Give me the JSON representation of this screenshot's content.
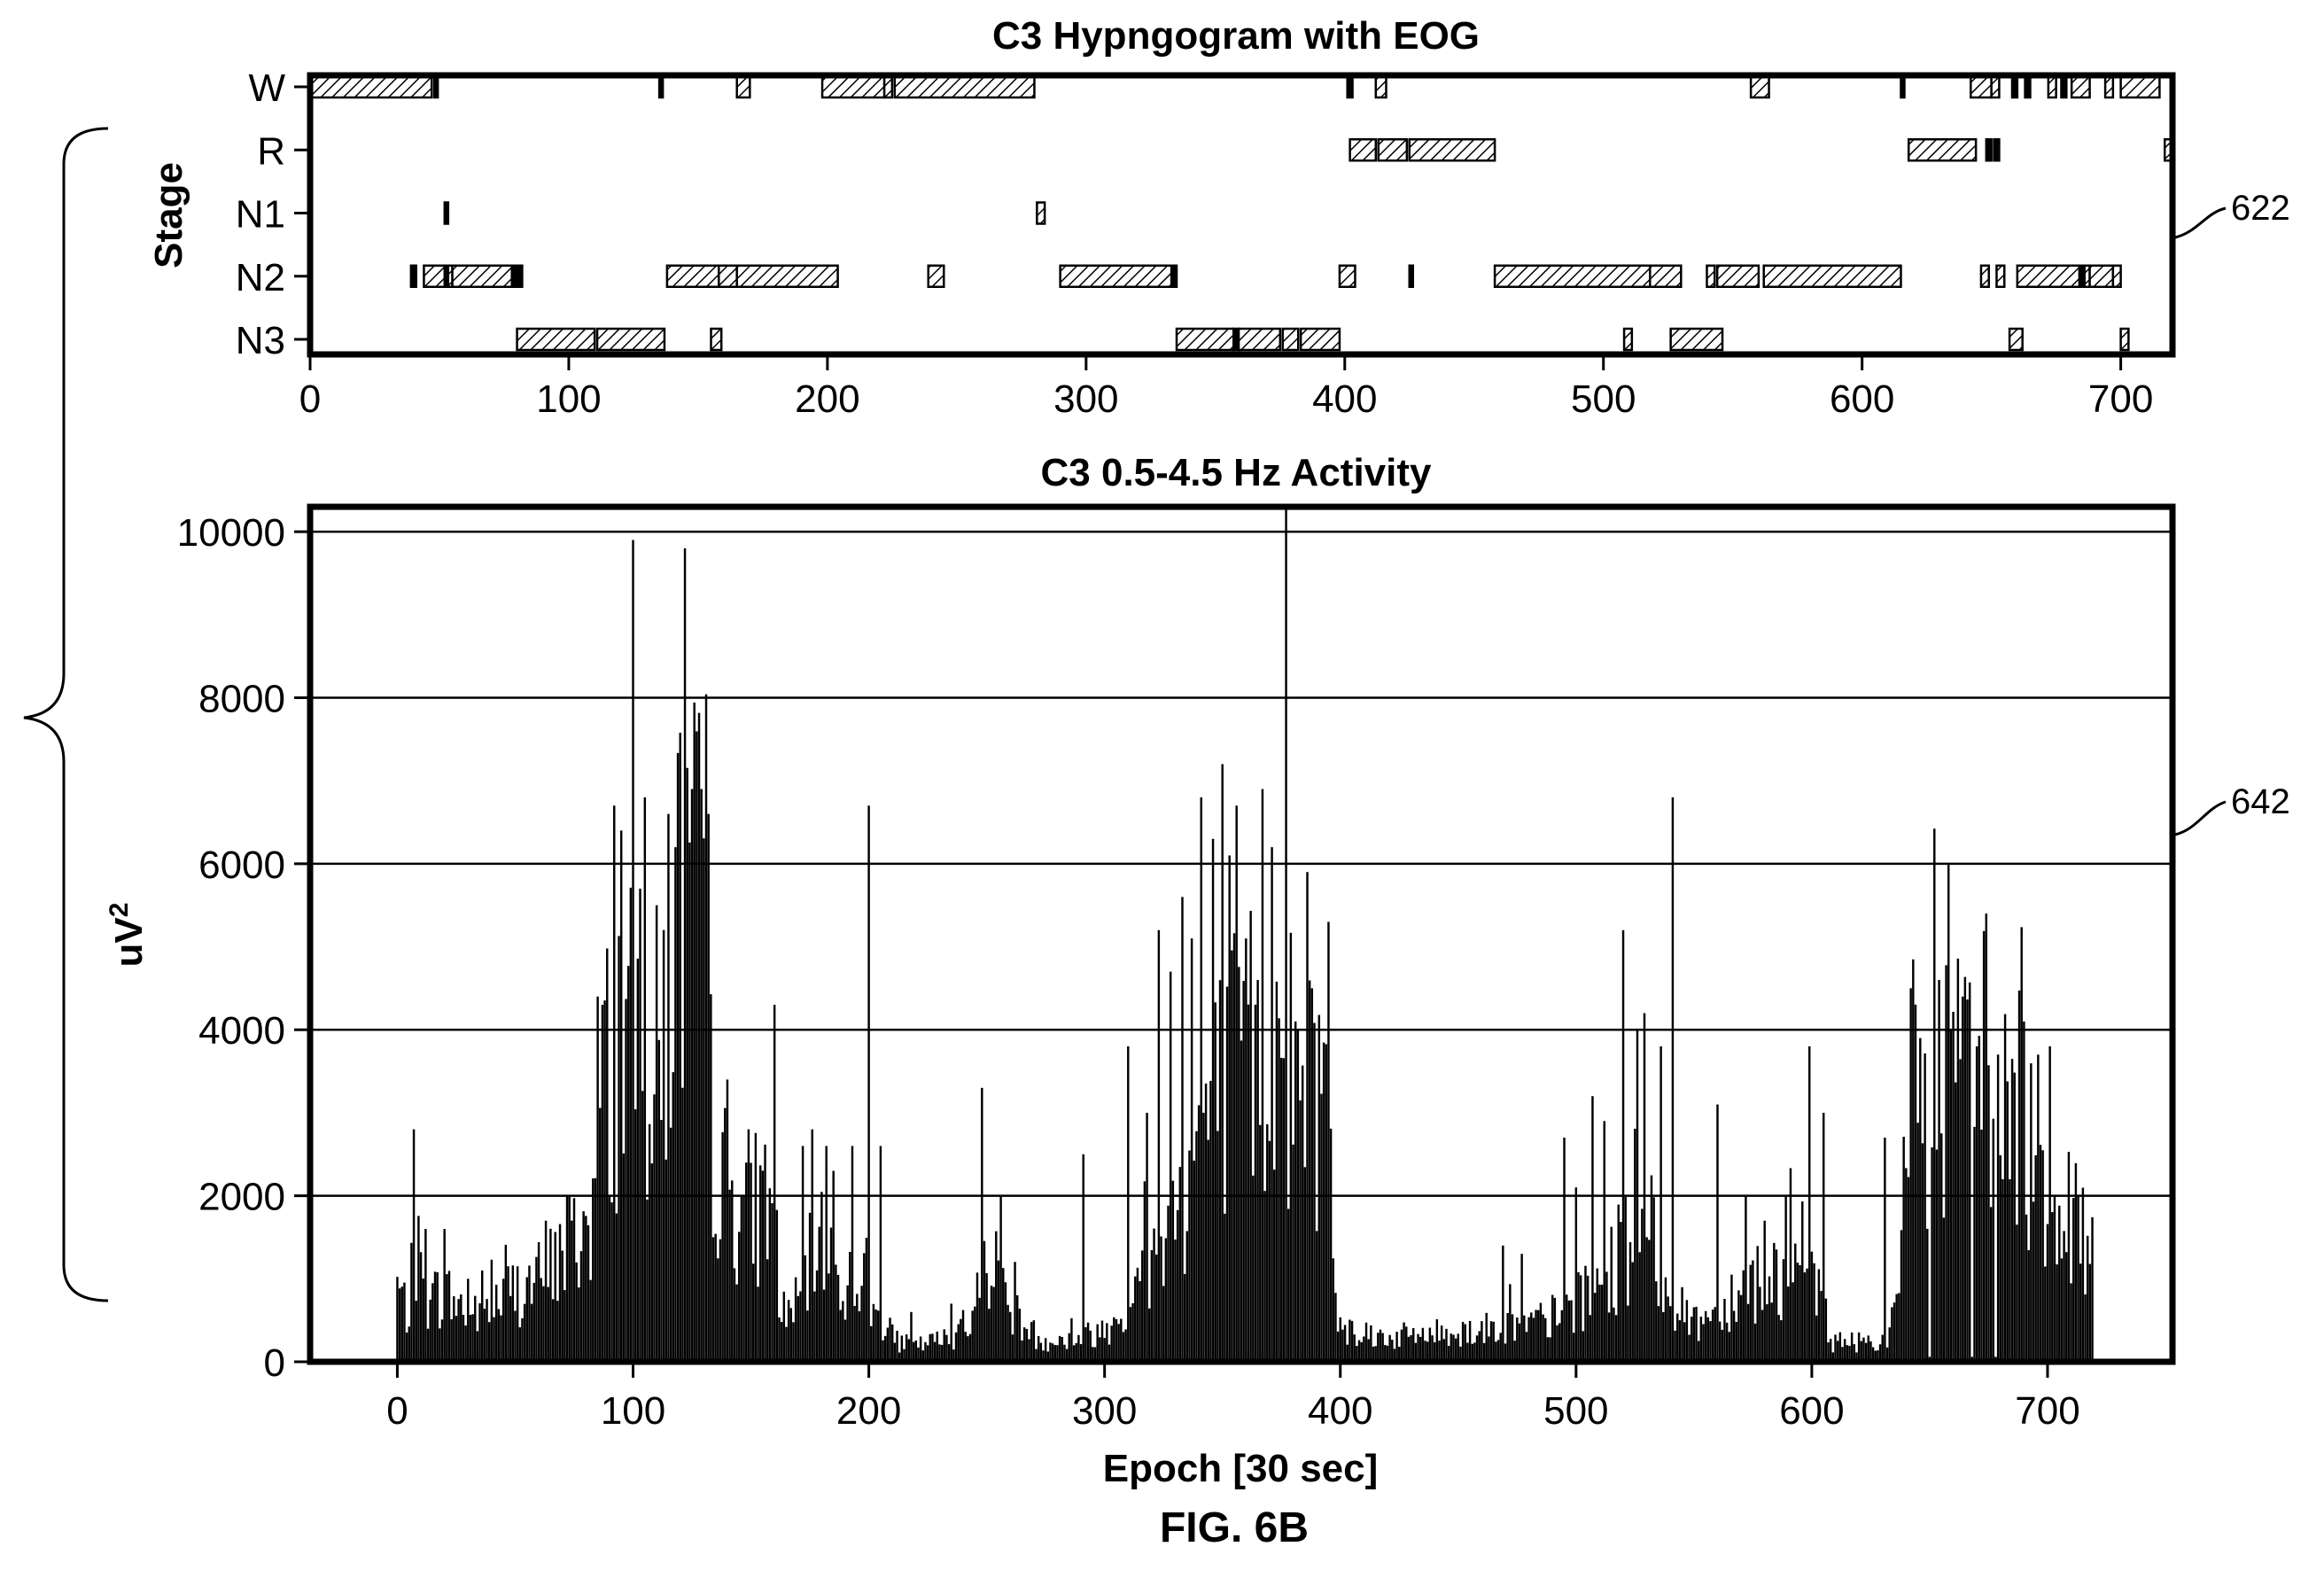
{
  "figure_label": "FIG. 6B",
  "reference_numerals": {
    "hypnogram": "622",
    "activity": "642"
  },
  "chart_data": [
    {
      "type": "bar",
      "chart_role": "hypnogram",
      "title": "C3 Hypngogram with EOG",
      "ylabel": "Stage",
      "xlabel": "",
      "stages": [
        "W",
        "R",
        "N1",
        "N2",
        "N3"
      ],
      "x_ticks": [
        0,
        100,
        200,
        300,
        400,
        500,
        600,
        700
      ],
      "xlim": [
        0,
        720
      ],
      "grid": false,
      "segments": [
        {
          "stage": "W",
          "start": 0,
          "end": 47
        },
        {
          "stage": "W",
          "start": 48,
          "end": 49
        },
        {
          "stage": "W",
          "start": 135,
          "end": 136
        },
        {
          "stage": "W",
          "start": 165,
          "end": 170
        },
        {
          "stage": "W",
          "start": 198,
          "end": 222
        },
        {
          "stage": "W",
          "start": 222,
          "end": 225
        },
        {
          "stage": "W",
          "start": 226,
          "end": 280
        },
        {
          "stage": "W",
          "start": 401,
          "end": 403
        },
        {
          "stage": "W",
          "start": 412,
          "end": 416
        },
        {
          "stage": "W",
          "start": 557,
          "end": 564
        },
        {
          "stage": "W",
          "start": 615,
          "end": 616
        },
        {
          "stage": "W",
          "start": 642,
          "end": 650
        },
        {
          "stage": "W",
          "start": 650,
          "end": 653
        },
        {
          "stage": "W",
          "start": 658,
          "end": 660
        },
        {
          "stage": "W",
          "start": 663,
          "end": 665
        },
        {
          "stage": "W",
          "start": 672,
          "end": 675
        },
        {
          "stage": "W",
          "start": 677,
          "end": 679
        },
        {
          "stage": "W",
          "start": 681,
          "end": 688
        },
        {
          "stage": "W",
          "start": 694,
          "end": 697
        },
        {
          "stage": "W",
          "start": 700,
          "end": 715
        },
        {
          "stage": "R",
          "start": 402,
          "end": 412
        },
        {
          "stage": "R",
          "start": 413,
          "end": 424
        },
        {
          "stage": "R",
          "start": 425,
          "end": 458
        },
        {
          "stage": "R",
          "start": 618,
          "end": 644
        },
        {
          "stage": "R",
          "start": 648,
          "end": 650
        },
        {
          "stage": "R",
          "start": 651,
          "end": 653
        },
        {
          "stage": "R",
          "start": 717,
          "end": 720
        },
        {
          "stage": "N1",
          "start": 52,
          "end": 53
        },
        {
          "stage": "N1",
          "start": 281,
          "end": 284
        },
        {
          "stage": "N2",
          "start": 39,
          "end": 41
        },
        {
          "stage": "N2",
          "start": 44,
          "end": 55
        },
        {
          "stage": "N2",
          "start": 52,
          "end": 53
        },
        {
          "stage": "N2",
          "start": 55,
          "end": 80
        },
        {
          "stage": "N2",
          "start": 78,
          "end": 80
        },
        {
          "stage": "N2",
          "start": 80,
          "end": 82
        },
        {
          "stage": "N2",
          "start": 138,
          "end": 158
        },
        {
          "stage": "N2",
          "start": 158,
          "end": 165
        },
        {
          "stage": "N2",
          "start": 165,
          "end": 204
        },
        {
          "stage": "N2",
          "start": 239,
          "end": 245
        },
        {
          "stage": "N2",
          "start": 290,
          "end": 333
        },
        {
          "stage": "N2",
          "start": 333,
          "end": 335
        },
        {
          "stage": "N2",
          "start": 398,
          "end": 404
        },
        {
          "stage": "N2",
          "start": 425,
          "end": 426
        },
        {
          "stage": "N2",
          "start": 458,
          "end": 518
        },
        {
          "stage": "N2",
          "start": 518,
          "end": 530
        },
        {
          "stage": "N2",
          "start": 540,
          "end": 543
        },
        {
          "stage": "N2",
          "start": 544,
          "end": 560
        },
        {
          "stage": "N2",
          "start": 562,
          "end": 615
        },
        {
          "stage": "N2",
          "start": 646,
          "end": 649
        },
        {
          "stage": "N2",
          "start": 652,
          "end": 655
        },
        {
          "stage": "N2",
          "start": 660,
          "end": 688
        },
        {
          "stage": "N2",
          "start": 684,
          "end": 686
        },
        {
          "stage": "N2",
          "start": 688,
          "end": 697
        },
        {
          "stage": "N2",
          "start": 697,
          "end": 700
        },
        {
          "stage": "N3",
          "start": 80,
          "end": 110
        },
        {
          "stage": "N3",
          "start": 111,
          "end": 137
        },
        {
          "stage": "N3",
          "start": 155,
          "end": 159
        },
        {
          "stage": "N3",
          "start": 335,
          "end": 357
        },
        {
          "stage": "N3",
          "start": 357,
          "end": 359
        },
        {
          "stage": "N3",
          "start": 359,
          "end": 375
        },
        {
          "stage": "N3",
          "start": 376,
          "end": 382
        },
        {
          "stage": "N3",
          "start": 383,
          "end": 398
        },
        {
          "stage": "N3",
          "start": 508,
          "end": 511
        },
        {
          "stage": "N3",
          "start": 526,
          "end": 546
        },
        {
          "stage": "N3",
          "start": 657,
          "end": 662
        },
        {
          "stage": "N3",
          "start": 700,
          "end": 703
        }
      ]
    },
    {
      "type": "bar",
      "chart_role": "activity",
      "title": "C3 0.5-4.5 Hz Activity",
      "xlabel": "Epoch [30 sec]",
      "ylabel": "uV",
      "ylabel_superscript": "2",
      "x_ticks": [
        0,
        100,
        200,
        300,
        400,
        500,
        600,
        700
      ],
      "y_ticks": [
        0,
        2000,
        4000,
        6000,
        8000,
        10000
      ],
      "xlim": [
        -37,
        753
      ],
      "ylim": [
        0,
        10300
      ],
      "grid": true,
      "anchors": [
        [
          0,
          950
        ],
        [
          3,
          700
        ],
        [
          6,
          600
        ],
        [
          8,
          1400
        ],
        [
          12,
          750
        ],
        [
          20,
          850
        ],
        [
          30,
          600
        ],
        [
          40,
          700
        ],
        [
          50,
          900
        ],
        [
          60,
          1000
        ],
        [
          70,
          1300
        ],
        [
          80,
          1700
        ],
        [
          86,
          2200
        ],
        [
          88,
          3500
        ],
        [
          95,
          4000
        ],
        [
          100,
          4300
        ],
        [
          106,
          3800
        ],
        [
          110,
          3300
        ],
        [
          115,
          4800
        ],
        [
          120,
          5600
        ],
        [
          125,
          5700
        ],
        [
          130,
          5300
        ],
        [
          133,
          3300
        ],
        [
          137,
          2200
        ],
        [
          145,
          2000
        ],
        [
          155,
          1900
        ],
        [
          160,
          1700
        ],
        [
          163,
          600
        ],
        [
          170,
          700
        ],
        [
          178,
          1500
        ],
        [
          185,
          1200
        ],
        [
          190,
          900
        ],
        [
          196,
          1100
        ],
        [
          200,
          700
        ],
        [
          205,
          500
        ],
        [
          212,
          250
        ],
        [
          220,
          200
        ],
        [
          235,
          300
        ],
        [
          245,
          600
        ],
        [
          250,
          1400
        ],
        [
          256,
          1000
        ],
        [
          262,
          600
        ],
        [
          270,
          300
        ],
        [
          280,
          250
        ],
        [
          290,
          300
        ],
        [
          300,
          400
        ],
        [
          310,
          700
        ],
        [
          320,
          1200
        ],
        [
          330,
          1800
        ],
        [
          338,
          2800
        ],
        [
          345,
          3100
        ],
        [
          350,
          3300
        ],
        [
          356,
          3600
        ],
        [
          360,
          3800
        ],
        [
          368,
          3700
        ],
        [
          375,
          3800
        ],
        [
          382,
          3600
        ],
        [
          390,
          3300
        ],
        [
          395,
          3200
        ],
        [
          398,
          600
        ],
        [
          405,
          400
        ],
        [
          420,
          300
        ],
        [
          440,
          350
        ],
        [
          460,
          400
        ],
        [
          480,
          450
        ],
        [
          495,
          600
        ],
        [
          505,
          800
        ],
        [
          512,
          1000
        ],
        [
          518,
          1300
        ],
        [
          525,
          1500
        ],
        [
          532,
          1500
        ],
        [
          538,
          1100
        ],
        [
          545,
          600
        ],
        [
          552,
          500
        ],
        [
          560,
          700
        ],
        [
          570,
          900
        ],
        [
          580,
          1100
        ],
        [
          590,
          1000
        ],
        [
          600,
          900
        ],
        [
          605,
          900
        ],
        [
          608,
          250
        ],
        [
          620,
          250
        ],
        [
          633,
          300
        ],
        [
          637,
          700
        ],
        [
          640,
          3000
        ],
        [
          645,
          3600
        ],
        [
          650,
          3200
        ],
        [
          658,
          3400
        ],
        [
          665,
          3200
        ],
        [
          672,
          3700
        ],
        [
          680,
          3200
        ],
        [
          688,
          3000
        ],
        [
          695,
          2700
        ],
        [
          702,
          2100
        ],
        [
          708,
          1700
        ],
        [
          713,
          1600
        ],
        [
          719,
          1500
        ]
      ],
      "spikes": [
        [
          7,
          2800
        ],
        [
          12,
          1600
        ],
        [
          20,
          1600
        ],
        [
          30,
          1000
        ],
        [
          36,
          1100
        ],
        [
          45,
          1000
        ],
        [
          63,
          1700
        ],
        [
          72,
          2000
        ],
        [
          85,
          4400
        ],
        [
          87,
          4300
        ],
        [
          92,
          6700
        ],
        [
          95,
          6400
        ],
        [
          100,
          9900
        ],
        [
          103,
          5700
        ],
        [
          105,
          6800
        ],
        [
          110,
          5500
        ],
        [
          115,
          6600
        ],
        [
          118,
          6200
        ],
        [
          122,
          9800
        ],
        [
          125,
          6900
        ],
        [
          129,
          6900
        ],
        [
          132,
          6600
        ],
        [
          140,
          3400
        ],
        [
          148,
          2400
        ],
        [
          160,
          4300
        ],
        [
          172,
          2600
        ],
        [
          176,
          2800
        ],
        [
          182,
          2600
        ],
        [
          185,
          2300
        ],
        [
          193,
          2600
        ],
        [
          200,
          6700
        ],
        [
          205,
          2600
        ],
        [
          218,
          600
        ],
        [
          235,
          700
        ],
        [
          248,
          3300
        ],
        [
          256,
          2000
        ],
        [
          270,
          500
        ],
        [
          291,
          2500
        ],
        [
          310,
          3800
        ],
        [
          318,
          3000
        ],
        [
          323,
          5200
        ],
        [
          328,
          4700
        ],
        [
          333,
          5600
        ],
        [
          337,
          5100
        ],
        [
          341,
          6800
        ],
        [
          346,
          6300
        ],
        [
          350,
          7200
        ],
        [
          353,
          6100
        ],
        [
          356,
          6700
        ],
        [
          360,
          5100
        ],
        [
          365,
          4600
        ],
        [
          367,
          6900
        ],
        [
          371,
          6200
        ],
        [
          377,
          10400
        ],
        [
          381,
          4100
        ],
        [
          386,
          5900
        ],
        [
          388,
          4500
        ],
        [
          395,
          5300
        ],
        [
          469,
          1400
        ],
        [
          477,
          1300
        ],
        [
          495,
          2700
        ],
        [
          500,
          2100
        ],
        [
          507,
          3200
        ],
        [
          512,
          2900
        ],
        [
          520,
          5200
        ],
        [
          526,
          4000
        ],
        [
          529,
          4200
        ],
        [
          536,
          3800
        ],
        [
          541,
          6800
        ],
        [
          560,
          3100
        ],
        [
          572,
          2000
        ],
        [
          580,
          1700
        ],
        [
          589,
          2000
        ],
        [
          599,
          3800
        ],
        [
          605,
          3000
        ],
        [
          631,
          2700
        ],
        [
          642,
          4500
        ],
        [
          646,
          3900
        ],
        [
          650,
          6000
        ],
        [
          654,
          4600
        ],
        [
          658,
          6000
        ],
        [
          664,
          4400
        ],
        [
          670,
          3800
        ],
        [
          674,
          5400
        ],
        [
          678,
          5500
        ],
        [
          684,
          2200
        ],
        [
          690,
          4100
        ],
        [
          696,
          3700
        ],
        [
          701,
          3800
        ],
        [
          713,
          2000
        ]
      ],
      "dips": [
        650,
        668,
        678
      ]
    }
  ]
}
